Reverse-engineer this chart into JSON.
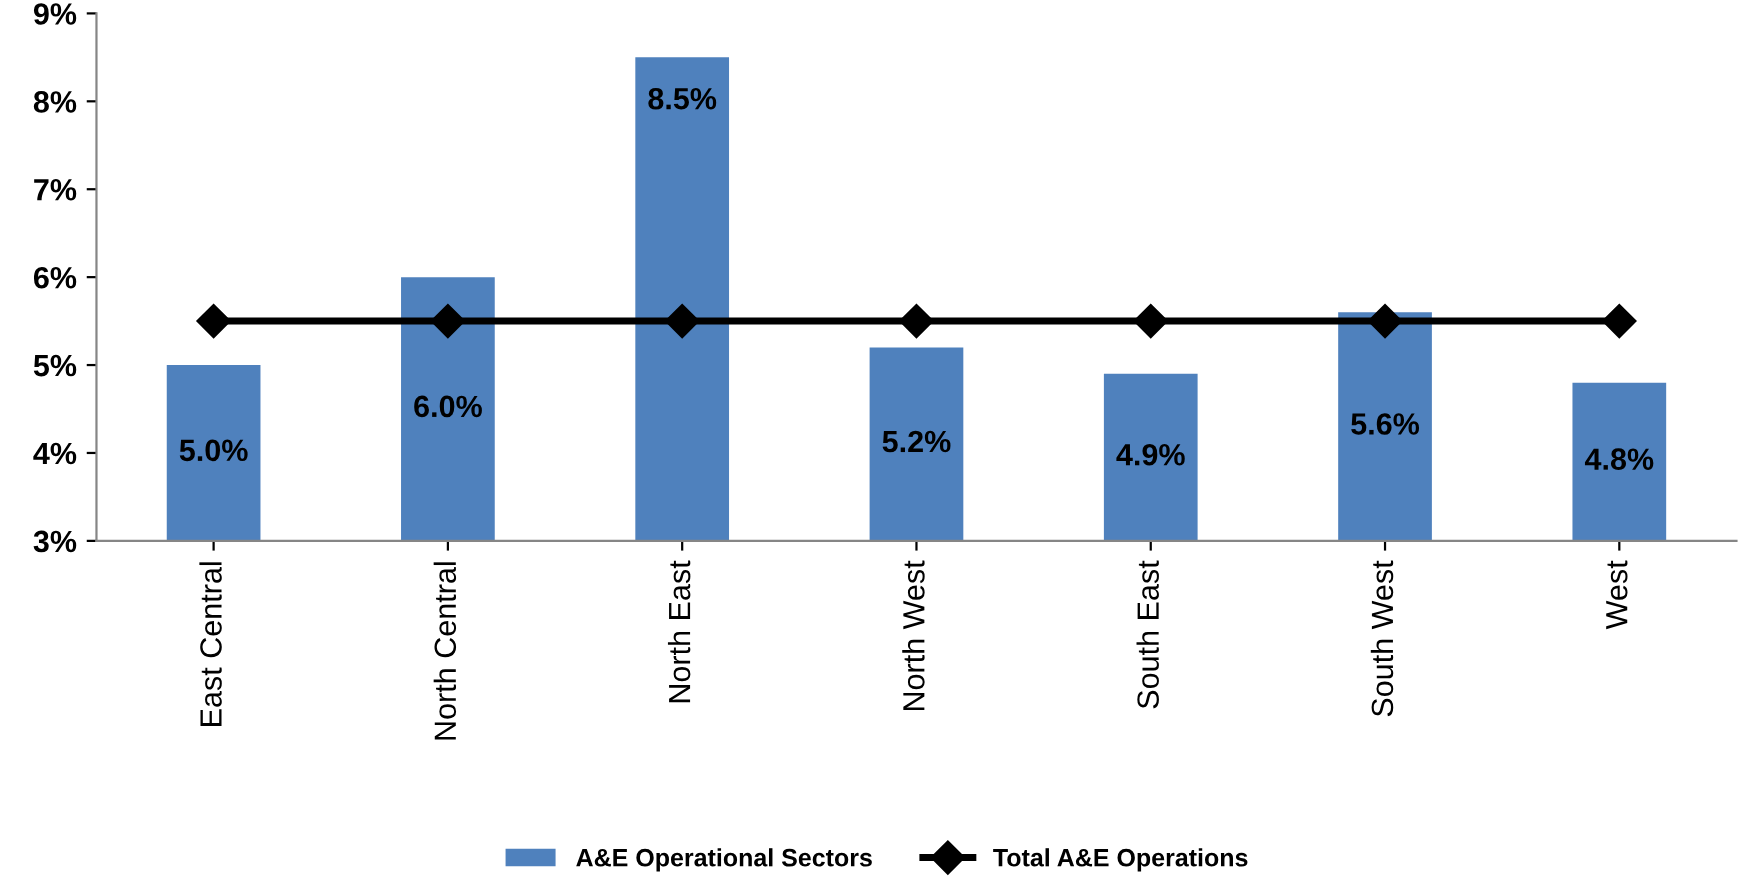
{
  "chart_data": {
    "type": "bar",
    "categories": [
      "East Central",
      "North Central",
      "North East",
      "North West",
      "South East",
      "South West",
      "West"
    ],
    "series": [
      {
        "name": "A&E Operational Sectors",
        "color": "#4f81bd",
        "values": [
          5.0,
          6.0,
          8.5,
          5.2,
          4.9,
          5.6,
          4.8
        ],
        "value_labels": [
          "5.0%",
          "6.0%",
          "8.5%",
          "5.2%",
          "4.9%",
          "5.6%",
          "4.8%"
        ]
      },
      {
        "name": "Total A&E Operations",
        "type": "line",
        "color": "#000000",
        "marker": "diamond",
        "values": [
          5.5,
          5.5,
          5.5,
          5.5,
          5.5,
          5.5,
          5.5
        ]
      }
    ],
    "ylim": [
      3,
      9
    ],
    "yticks": [
      {
        "value": 3,
        "label": "3%"
      },
      {
        "value": 4,
        "label": "4%"
      },
      {
        "value": 5,
        "label": "5%"
      },
      {
        "value": 6,
        "label": "6%"
      },
      {
        "value": 7,
        "label": "7%"
      },
      {
        "value": 8,
        "label": "8%"
      },
      {
        "value": 9,
        "label": "9%"
      }
    ],
    "legend": "bottom",
    "grid": false
  }
}
